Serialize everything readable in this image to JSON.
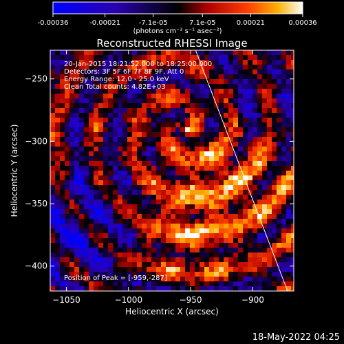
{
  "colorbar": {
    "tick_labels": [
      "-0.00036",
      "-0.00021",
      "-7.1e-05",
      "7.1e-05",
      "0.00021",
      "0.00036"
    ],
    "tick_values": [
      -0.00036,
      -0.00021,
      -7.1e-05,
      7.1e-05,
      0.00021,
      0.00036
    ],
    "range": [
      -0.00036,
      0.00036
    ],
    "unit_label": "(photons cm⁻² s⁻¹ asec⁻²)",
    "colors": [
      "#0000ff",
      "#2a00b0",
      "#000000",
      "#b00000",
      "#ff4000",
      "#ffb000",
      "#ffffff"
    ]
  },
  "chart_data": {
    "type": "heatmap",
    "title": "Reconstructed RHESSI Image",
    "xlabel": "Heliocentric X (arcsec)",
    "ylabel": "Heliocentric Y (arcsec)",
    "xlim": [
      -1063,
      -867
    ],
    "ylim": [
      -420,
      -227
    ],
    "xticks": [
      -1050,
      -1000,
      -950,
      -900
    ],
    "yticks": [
      -250,
      -300,
      -350,
      -400
    ],
    "xtick_labels": [
      "−1050",
      "−1000",
      "−950",
      "−900"
    ],
    "ytick_labels": [
      "−250",
      "−300",
      "−350",
      "−400"
    ],
    "annotations": [
      "20-Jan-2015 18:21:52.000 to 18:25:00.000",
      "Detectors: 3F 5F 6F 7F 8F 9F, Att 0",
      "Energy Range: 12.0 - 25.0 keV",
      "Clean    Total counts: 4.82E+03"
    ],
    "peak_label": "Position of Peak = [-959,-287]",
    "peak": [
      -959,
      -287
    ],
    "limb_line": [
      [
        -946,
        -227
      ],
      [
        -872,
        -420
      ]
    ],
    "limb_color": "#ffffff"
  },
  "footer": {
    "date": "18-May-2022 04:25"
  }
}
